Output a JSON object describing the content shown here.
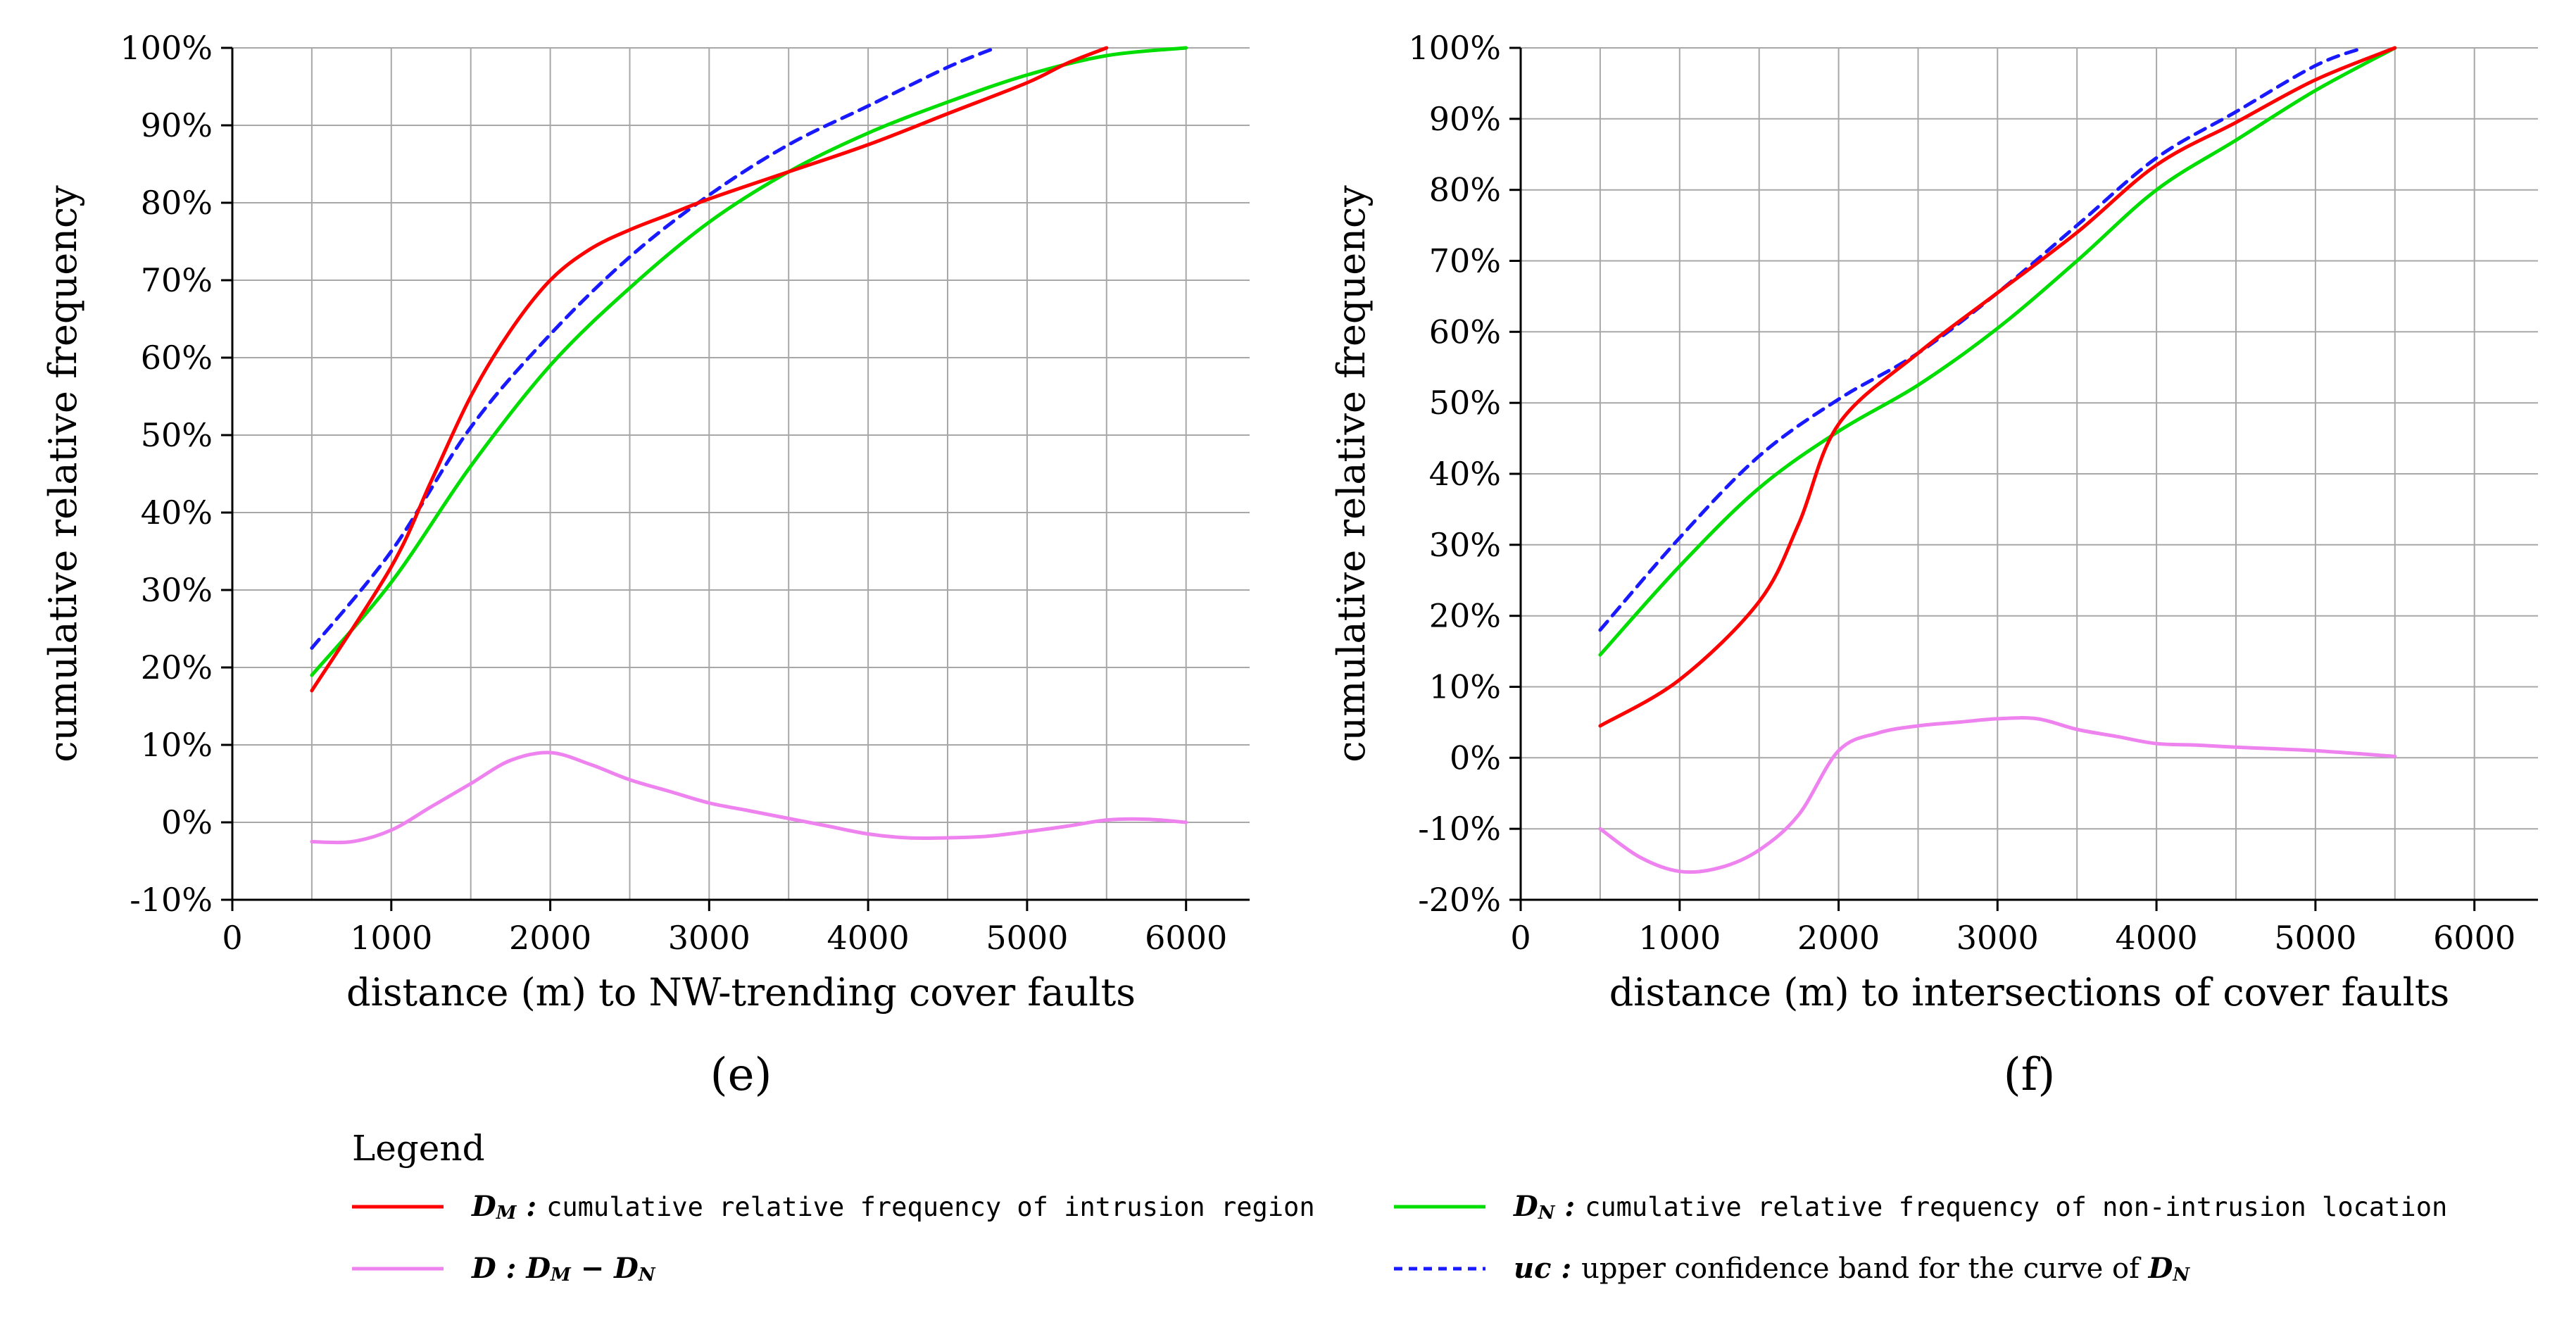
{
  "page": {
    "background": "#ffffff"
  },
  "colors": {
    "dm": "#ff0000",
    "dn": "#00dd00",
    "uc": "#1919ff",
    "d": "#ee82ee",
    "grid": "#a8a8a8",
    "axis": "#000000"
  },
  "legend": {
    "title": "Legend",
    "entries": [
      {
        "series": "dm",
        "color": "#ff0000",
        "dash": "solid",
        "label_rich": [
          {
            "text": "D",
            "style": "sym"
          },
          {
            "text": "M",
            "style": "sub"
          },
          {
            "text": " : ",
            "style": "sym"
          },
          {
            "text": "cumulative relative frequency of intrusion region",
            "style": "desc"
          }
        ]
      },
      {
        "series": "dn",
        "color": "#00dd00",
        "dash": "solid",
        "label_rich": [
          {
            "text": "D",
            "style": "sym"
          },
          {
            "text": "N",
            "style": "sub"
          },
          {
            "text": " : ",
            "style": "sym"
          },
          {
            "text": "cumulative relative frequency of non-intrusion location",
            "style": "desc"
          }
        ]
      },
      {
        "series": "d",
        "color": "#ee82ee",
        "dash": "solid",
        "label_rich": [
          {
            "text": "D",
            "style": "sym"
          },
          {
            "text": " :  ",
            "style": "sym"
          },
          {
            "text": "D",
            "style": "sym"
          },
          {
            "text": "M",
            "style": "sub"
          },
          {
            "text": " − ",
            "style": "sym"
          },
          {
            "text": "D",
            "style": "sym"
          },
          {
            "text": "N",
            "style": "sub"
          }
        ]
      },
      {
        "series": "uc",
        "color": "#1919ff",
        "dash": "dashed",
        "label_rich": [
          {
            "text": "uc",
            "style": "sym"
          },
          {
            "text": " : ",
            "style": "sym"
          },
          {
            "text": "upper confidence band for the curve of ",
            "style": "descserif"
          },
          {
            "text": "D",
            "style": "sym"
          },
          {
            "text": "N",
            "style": "sub"
          }
        ]
      }
    ]
  },
  "chart_data": [
    {
      "type": "line",
      "caption": "(e)",
      "xlabel": "distance (m) to NW-trending cover faults",
      "ylabel": "cumulative relative frequency",
      "xlim": [
        0,
        6400
      ],
      "xticks": [
        0,
        1000,
        2000,
        3000,
        4000,
        5000,
        6000
      ],
      "xtick_labels": [
        "0",
        "1000",
        "2000",
        "3000",
        "4000",
        "5000",
        "6000"
      ],
      "x_minor_step": 500,
      "ylim": [
        -10,
        100
      ],
      "yticks": [
        -10,
        0,
        10,
        20,
        30,
        40,
        50,
        60,
        70,
        80,
        90,
        100
      ],
      "ytick_labels": [
        "-10%",
        "0%",
        "10%",
        "20%",
        "30%",
        "40%",
        "50%",
        "60%",
        "70%",
        "80%",
        "90%",
        "100%"
      ],
      "grid": true,
      "series": [
        {
          "key": "uc",
          "name": "uc: upper confidence band for the curve of DN",
          "color": "#1919ff",
          "dash": "16 11",
          "points": [
            [
              500,
              22.5
            ],
            [
              1000,
              35
            ],
            [
              1500,
              51
            ],
            [
              2000,
              63
            ],
            [
              2500,
              73
            ],
            [
              3000,
              81
            ],
            [
              3500,
              87.5
            ],
            [
              4000,
              92.5
            ],
            [
              4500,
              97.5
            ],
            [
              4800,
              100
            ]
          ]
        },
        {
          "key": "dn",
          "name": "DN: cumulative relative frequency of non-intrusion location",
          "color": "#00dd00",
          "dash": null,
          "points": [
            [
              500,
              19
            ],
            [
              1000,
              31
            ],
            [
              1500,
              46
            ],
            [
              2000,
              59
            ],
            [
              2500,
              69
            ],
            [
              3000,
              77.5
            ],
            [
              3500,
              84
            ],
            [
              4000,
              89
            ],
            [
              4500,
              93
            ],
            [
              5000,
              96.5
            ],
            [
              5500,
              99
            ],
            [
              6000,
              100
            ]
          ]
        },
        {
          "key": "dm",
          "name": "DM: cumulative relative frequency of intrusion region",
          "color": "#ff0000",
          "dash": null,
          "points": [
            [
              500,
              17
            ],
            [
              1000,
              33
            ],
            [
              1250,
              44
            ],
            [
              1500,
              55
            ],
            [
              1750,
              63.5
            ],
            [
              2000,
              70
            ],
            [
              2250,
              74
            ],
            [
              2500,
              76.5
            ],
            [
              2750,
              78.5
            ],
            [
              3000,
              80.5
            ],
            [
              3500,
              84
            ],
            [
              4000,
              87.5
            ],
            [
              4500,
              91.5
            ],
            [
              5000,
              95.5
            ],
            [
              5250,
              98
            ],
            [
              5500,
              100
            ]
          ]
        },
        {
          "key": "d",
          "name": "D = DM − DN",
          "color": "#ee82ee",
          "dash": null,
          "points": [
            [
              500,
              -2.5
            ],
            [
              750,
              -2.5
            ],
            [
              1000,
              -1
            ],
            [
              1250,
              2
            ],
            [
              1500,
              5
            ],
            [
              1750,
              8
            ],
            [
              2000,
              9
            ],
            [
              2250,
              7.5
            ],
            [
              2500,
              5.5
            ],
            [
              2750,
              4
            ],
            [
              3000,
              2.5
            ],
            [
              3250,
              1.5
            ],
            [
              3500,
              0.5
            ],
            [
              3750,
              -0.5
            ],
            [
              4000,
              -1.5
            ],
            [
              4250,
              -2
            ],
            [
              4500,
              -2
            ],
            [
              4750,
              -1.8
            ],
            [
              5000,
              -1.2
            ],
            [
              5250,
              -0.5
            ],
            [
              5500,
              0.3
            ],
            [
              5750,
              0.4
            ],
            [
              6000,
              0
            ]
          ]
        }
      ]
    },
    {
      "type": "line",
      "caption": "(f)",
      "xlabel": "distance (m) to intersections of cover faults",
      "ylabel": "cumulative relative frequency",
      "xlim": [
        0,
        6400
      ],
      "xticks": [
        0,
        1000,
        2000,
        3000,
        4000,
        5000,
        6000
      ],
      "xtick_labels": [
        "0",
        "1000",
        "2000",
        "3000",
        "4000",
        "5000",
        "6000"
      ],
      "x_minor_step": 500,
      "ylim": [
        -20,
        100
      ],
      "yticks": [
        -20,
        -10,
        0,
        10,
        20,
        30,
        40,
        50,
        60,
        70,
        80,
        90,
        100
      ],
      "ytick_labels": [
        "-20%",
        "-10%",
        "0%",
        "10%",
        "20%",
        "30%",
        "40%",
        "50%",
        "60%",
        "70%",
        "80%",
        "90%",
        "100%"
      ],
      "grid": true,
      "series": [
        {
          "key": "uc",
          "name": "uc: upper confidence band for the curve of DN",
          "color": "#1919ff",
          "dash": "16 11",
          "points": [
            [
              500,
              18
            ],
            [
              1000,
              31
            ],
            [
              1500,
              42.5
            ],
            [
              2000,
              50.5
            ],
            [
              2500,
              57
            ],
            [
              3000,
              65.5
            ],
            [
              3500,
              75
            ],
            [
              4000,
              84.5
            ],
            [
              4500,
              91
            ],
            [
              5000,
              97.5
            ],
            [
              5300,
              100
            ]
          ]
        },
        {
          "key": "dn",
          "name": "DN: cumulative relative frequency of non-intrusion location",
          "color": "#00dd00",
          "dash": null,
          "points": [
            [
              500,
              14.5
            ],
            [
              1000,
              27
            ],
            [
              1500,
              38
            ],
            [
              2000,
              46
            ],
            [
              2500,
              52.5
            ],
            [
              3000,
              60.5
            ],
            [
              3500,
              70
            ],
            [
              4000,
              80
            ],
            [
              4500,
              87
            ],
            [
              5000,
              94
            ],
            [
              5500,
              100
            ]
          ]
        },
        {
          "key": "dm",
          "name": "DM: cumulative relative frequency of intrusion region",
          "color": "#ff0000",
          "dash": null,
          "points": [
            [
              500,
              4.5
            ],
            [
              1000,
              11
            ],
            [
              1500,
              22
            ],
            [
              1750,
              33
            ],
            [
              2000,
              47
            ],
            [
              2500,
              57
            ],
            [
              3000,
              65.5
            ],
            [
              3500,
              74
            ],
            [
              4000,
              83.5
            ],
            [
              4500,
              89.5
            ],
            [
              5000,
              95.5
            ],
            [
              5500,
              100
            ]
          ]
        },
        {
          "key": "d",
          "name": "D = DM − DN",
          "color": "#ee82ee",
          "dash": null,
          "points": [
            [
              500,
              -10
            ],
            [
              750,
              -14
            ],
            [
              1000,
              -16
            ],
            [
              1250,
              -15.5
            ],
            [
              1500,
              -13
            ],
            [
              1750,
              -8
            ],
            [
              2000,
              1
            ],
            [
              2250,
              3.5
            ],
            [
              2500,
              4.5
            ],
            [
              2750,
              5
            ],
            [
              3000,
              5.5
            ],
            [
              3250,
              5.5
            ],
            [
              3500,
              4
            ],
            [
              3750,
              3
            ],
            [
              4000,
              2
            ],
            [
              4250,
              1.8
            ],
            [
              4500,
              1.5
            ],
            [
              5000,
              1
            ],
            [
              5500,
              0.2
            ]
          ]
        }
      ]
    }
  ]
}
